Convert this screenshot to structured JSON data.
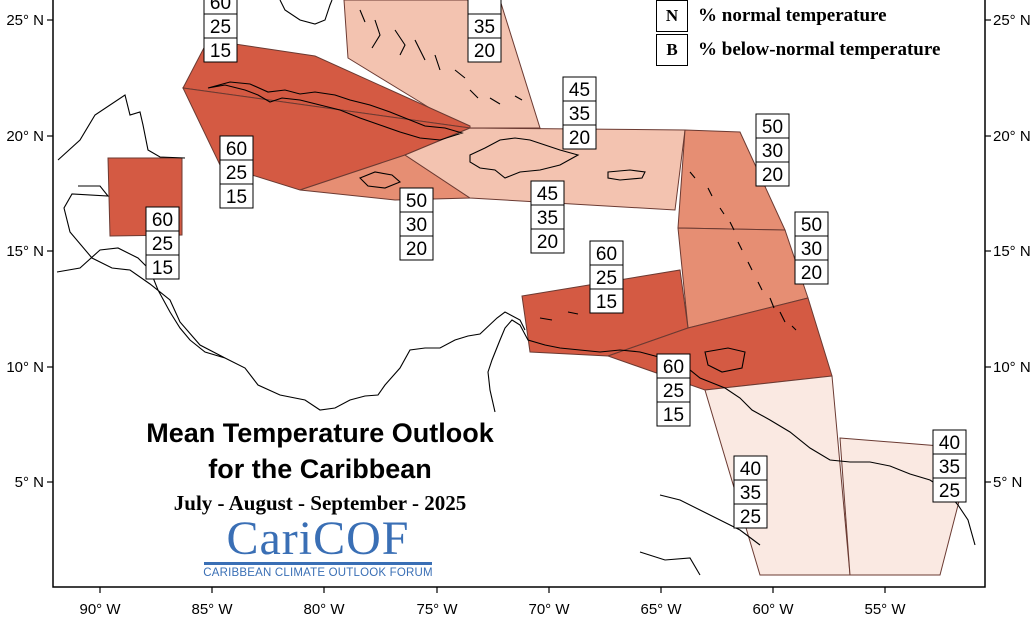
{
  "title_line1": "Mean Temperature Outlook",
  "title_line2": "for the Caribbean",
  "period": "July - August - September - 2025",
  "logo": {
    "name": "CariCOF",
    "subtitle": "CARIBBEAN CLIMATE OUTLOOK FORUM"
  },
  "legend": [
    {
      "key": "N",
      "text": "% normal temperature"
    },
    {
      "key": "B",
      "text": "% below-normal temperature"
    }
  ],
  "axes": {
    "lon_ticks": [
      "90° W",
      "85° W",
      "80° W",
      "75° W",
      "70° W",
      "65° W",
      "60° W",
      "55° W"
    ],
    "lat_ticks": [
      "25° N",
      "20° N",
      "15° N",
      "10° N",
      "5° N"
    ]
  },
  "colors": {
    "above_60": "#d45a43",
    "above_50": "#e68e73",
    "above_45": "#f3c3b0",
    "above_40": "#fae9e2",
    "border": "#000000",
    "outline": "#6b3a32"
  },
  "regions": [
    {
      "id": "bahamas",
      "values": [
        "",
        "35",
        "20"
      ]
    },
    {
      "id": "cuba-cayman",
      "values": [
        "60",
        "25",
        "15"
      ]
    },
    {
      "id": "cuba-north",
      "values": [
        "60",
        "25",
        "15"
      ]
    },
    {
      "id": "belize",
      "values": [
        "60",
        "25",
        "15"
      ]
    },
    {
      "id": "jamaica",
      "values": [
        "50",
        "30",
        "20"
      ]
    },
    {
      "id": "hispaniola-pr",
      "values": [
        "45",
        "35",
        "20"
      ]
    },
    {
      "id": "ne-caribbean",
      "values": [
        "45",
        "35",
        "20"
      ]
    },
    {
      "id": "leeward-islands",
      "values": [
        "50",
        "30",
        "20"
      ]
    },
    {
      "id": "windward-islands",
      "values": [
        "50",
        "30",
        "20"
      ]
    },
    {
      "id": "abc-islands",
      "values": [
        "60",
        "25",
        "15"
      ]
    },
    {
      "id": "trinidad-tobago",
      "values": [
        "60",
        "25",
        "15"
      ]
    },
    {
      "id": "guyana",
      "values": [
        "40",
        "35",
        "25"
      ]
    },
    {
      "id": "french-guiana",
      "values": [
        "40",
        "35",
        "25"
      ]
    }
  ]
}
